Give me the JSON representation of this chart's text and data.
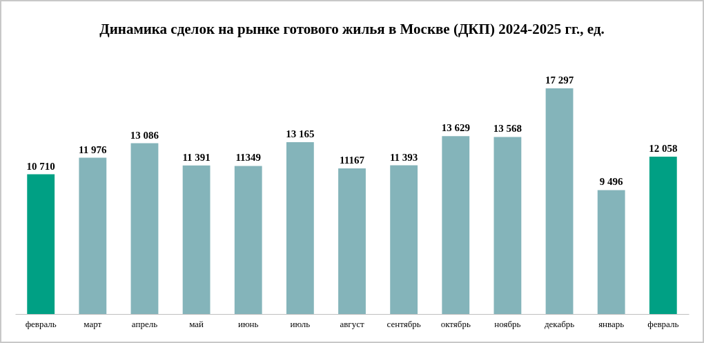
{
  "chart_data": {
    "type": "bar",
    "title": "Динамика сделок на рынке готового жилья в Москве (ДКП) 2024-2025 гг., ед.",
    "categories": [
      "февраль",
      "март",
      "апрель",
      "май",
      "июнь",
      "июль",
      "август",
      "сентябрь",
      "октябрь",
      "ноябрь",
      "декабрь",
      "январь",
      "февраль"
    ],
    "values": [
      10710,
      11976,
      13086,
      11391,
      11349,
      13165,
      11167,
      11393,
      13629,
      13568,
      17297,
      9496,
      12058
    ],
    "value_labels": [
      "10 710",
      "11 976",
      "13 086",
      "11 391",
      "11349",
      "13 165",
      "11167",
      "11 393",
      "13 629",
      "13 568",
      "17 297",
      "9 496",
      "12 058"
    ],
    "colors": [
      "#00a084",
      "#84b4ba",
      "#84b4ba",
      "#84b4ba",
      "#84b4ba",
      "#84b4ba",
      "#84b4ba",
      "#84b4ba",
      "#84b4ba",
      "#84b4ba",
      "#84b4ba",
      "#84b4ba",
      "#00a084"
    ]
  }
}
